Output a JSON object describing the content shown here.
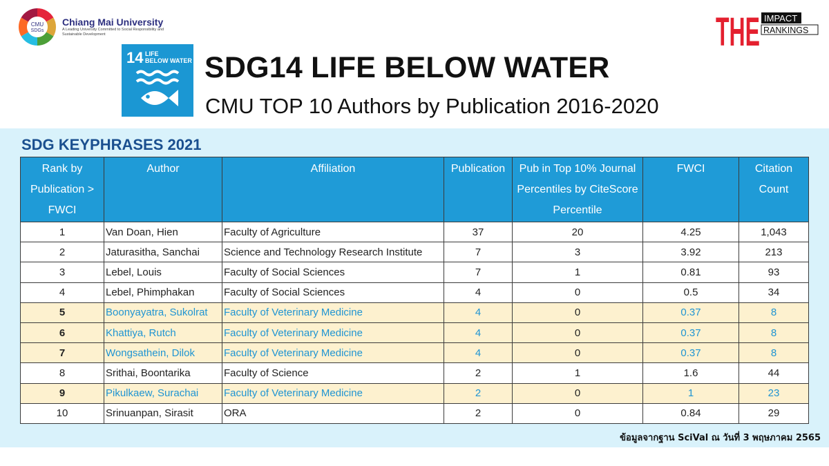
{
  "header": {
    "university_name": "Chiang Mai University",
    "university_tagline": "A Leading University Committed to Social Responsibility and Sustainable Development",
    "cmu_sdgs_badge": [
      "CMU",
      "SDGs"
    ],
    "the_logo": {
      "letters": "THE",
      "line1": "IMPACT",
      "line2": "RANKINGS"
    },
    "sdg_tile": {
      "number": "14",
      "line1": "LIFE",
      "line2": "BELOW WATER",
      "color": "#1b97d3"
    },
    "title": "SDG14 LIFE BELOW WATER",
    "subtitle": "CMU TOP 10 Authors by Publication 2016-2020"
  },
  "section_label": "SDG KEYPHRASES 2021",
  "table": {
    "headers": {
      "rank": "Rank by Publication > FWCI",
      "author": "Author",
      "affiliation": "Affiliation",
      "publication": "Publication",
      "top10": "Pub in Top 10% Journal Percentiles by CiteScore Percentile",
      "fwci": "FWCI",
      "citation": "Citation Count"
    },
    "rows": [
      {
        "rank": "1",
        "author": "Van Doan, Hien",
        "affiliation": "Faculty of Agriculture",
        "publication": "37",
        "top10": "20",
        "fwci": "4.25",
        "citation": "1,043",
        "highlight": false
      },
      {
        "rank": "2",
        "author": "Jaturasitha, Sanchai",
        "affiliation": "Science and Technology Research Institute",
        "publication": "7",
        "top10": "3",
        "fwci": "3.92",
        "citation": "213",
        "highlight": false
      },
      {
        "rank": "3",
        "author": "Lebel, Louis",
        "affiliation": "Faculty of Social Sciences",
        "publication": "7",
        "top10": "1",
        "fwci": "0.81",
        "citation": "93",
        "highlight": false
      },
      {
        "rank": "4",
        "author": "Lebel, Phimphakan",
        "affiliation": "Faculty of Social Sciences",
        "publication": "4",
        "top10": "0",
        "fwci": "0.5",
        "citation": "34",
        "highlight": false
      },
      {
        "rank": "5",
        "author": "Boonyayatra, Sukolrat",
        "affiliation": "Faculty of Veterinary Medicine",
        "publication": "4",
        "top10": "0",
        "fwci": "0.37",
        "citation": "8",
        "highlight": true
      },
      {
        "rank": "6",
        "author": "Khattiya, Rutch",
        "affiliation": "Faculty of Veterinary Medicine",
        "publication": "4",
        "top10": "0",
        "fwci": "0.37",
        "citation": "8",
        "highlight": true
      },
      {
        "rank": "7",
        "author": "Wongsathein, Dilok",
        "affiliation": "Faculty of Veterinary Medicine",
        "publication": "4",
        "top10": "0",
        "fwci": "0.37",
        "citation": "8",
        "highlight": true
      },
      {
        "rank": "8",
        "author": "Srithai, Boontarika",
        "affiliation": "Faculty of Science",
        "publication": "2",
        "top10": "1",
        "fwci": "1.6",
        "citation": "44",
        "highlight": false
      },
      {
        "rank": "9",
        "author": "Pikulkaew, Surachai",
        "affiliation": "Faculty of Veterinary Medicine",
        "publication": "2",
        "top10": "0",
        "fwci": "1",
        "citation": "23",
        "highlight": true
      },
      {
        "rank": "10",
        "author": "Srinuanpan, Sirasit",
        "affiliation": "ORA",
        "publication": "2",
        "top10": "0",
        "fwci": "0.84",
        "citation": "29",
        "highlight": false
      }
    ]
  },
  "footnote": "ข้อมูลจากฐาน SciVal ณ วันที่ 3 พฤษภาคม 2565",
  "colors": {
    "header_blue": "#1f9bd7",
    "band": "#d9f2fb",
    "highlight_row": "#fdf1cf",
    "highlight_text": "#1f94d2",
    "section_label": "#1a4f8f",
    "the_red": "#e4202f"
  }
}
